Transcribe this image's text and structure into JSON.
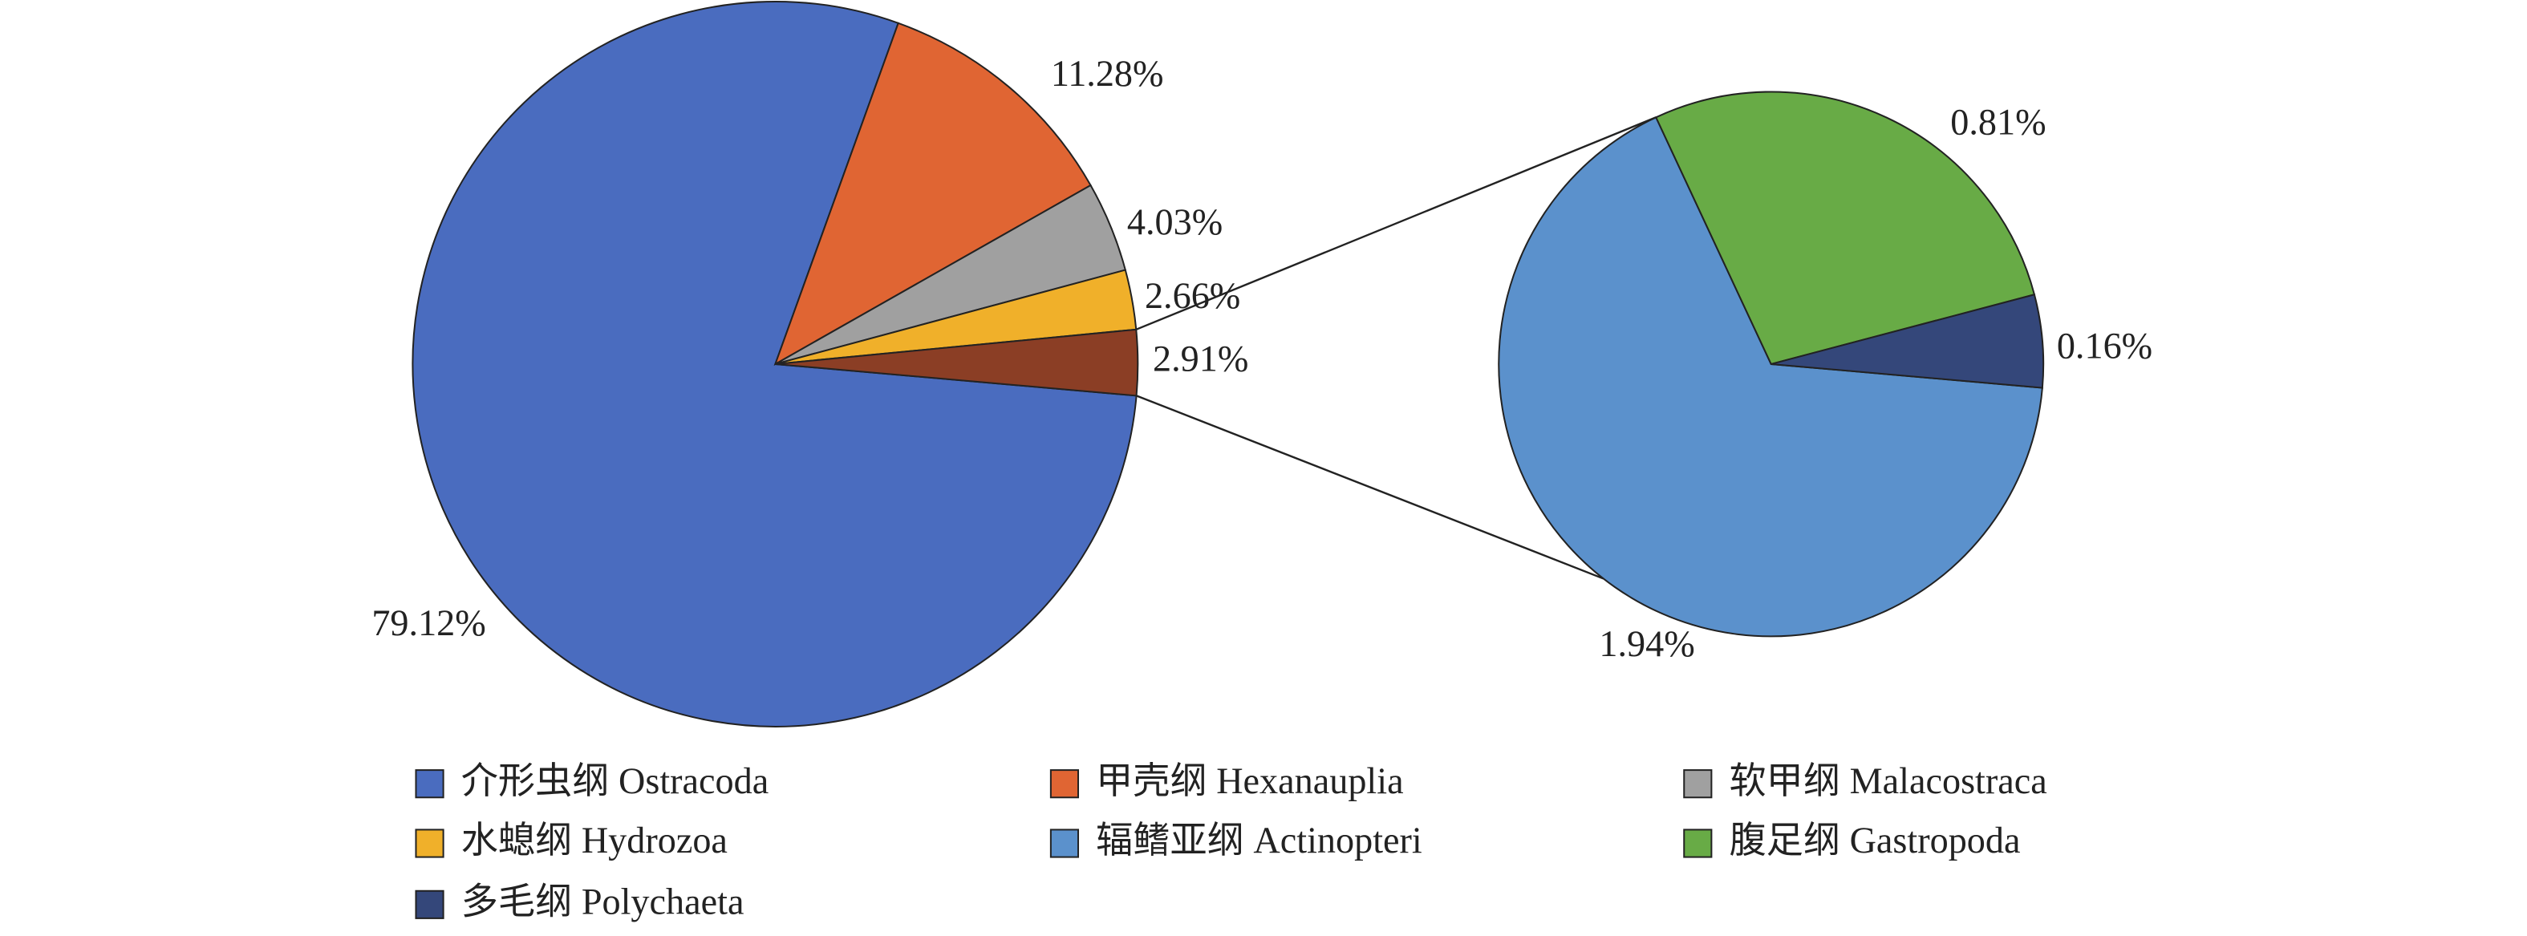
{
  "chart_data": [
    {
      "type": "pie",
      "categories": [
        "介形虫纲 Ostracoda",
        "甲壳纲 Hexanauplia",
        "软甲纲 Malacostraca",
        "水螅纲 Hydrozoa",
        null
      ],
      "values": [
        79.12,
        11.28,
        4.03,
        2.66,
        2.91
      ],
      "value_labels": [
        "79.12%",
        "11.28%",
        "4.03%",
        "2.66%",
        "2.91%"
      ],
      "colors": [
        "#4a6cbf",
        "#e06533",
        "#a0a0a0",
        "#f0b02a",
        "#8b3e25"
      ]
    },
    {
      "type": "pie",
      "categories": [
        "辐鳍亚纲 Actinopteri",
        "腹足纲 Gastropoda",
        "多毛纲 Polychaeta"
      ],
      "values": [
        1.94,
        0.81,
        0.16
      ],
      "value_labels": [
        "1.94%",
        "0.81%",
        "0.16%"
      ],
      "colors": [
        "#5b91cc",
        "#68ab46",
        "#34477a"
      ]
    }
  ]
}
